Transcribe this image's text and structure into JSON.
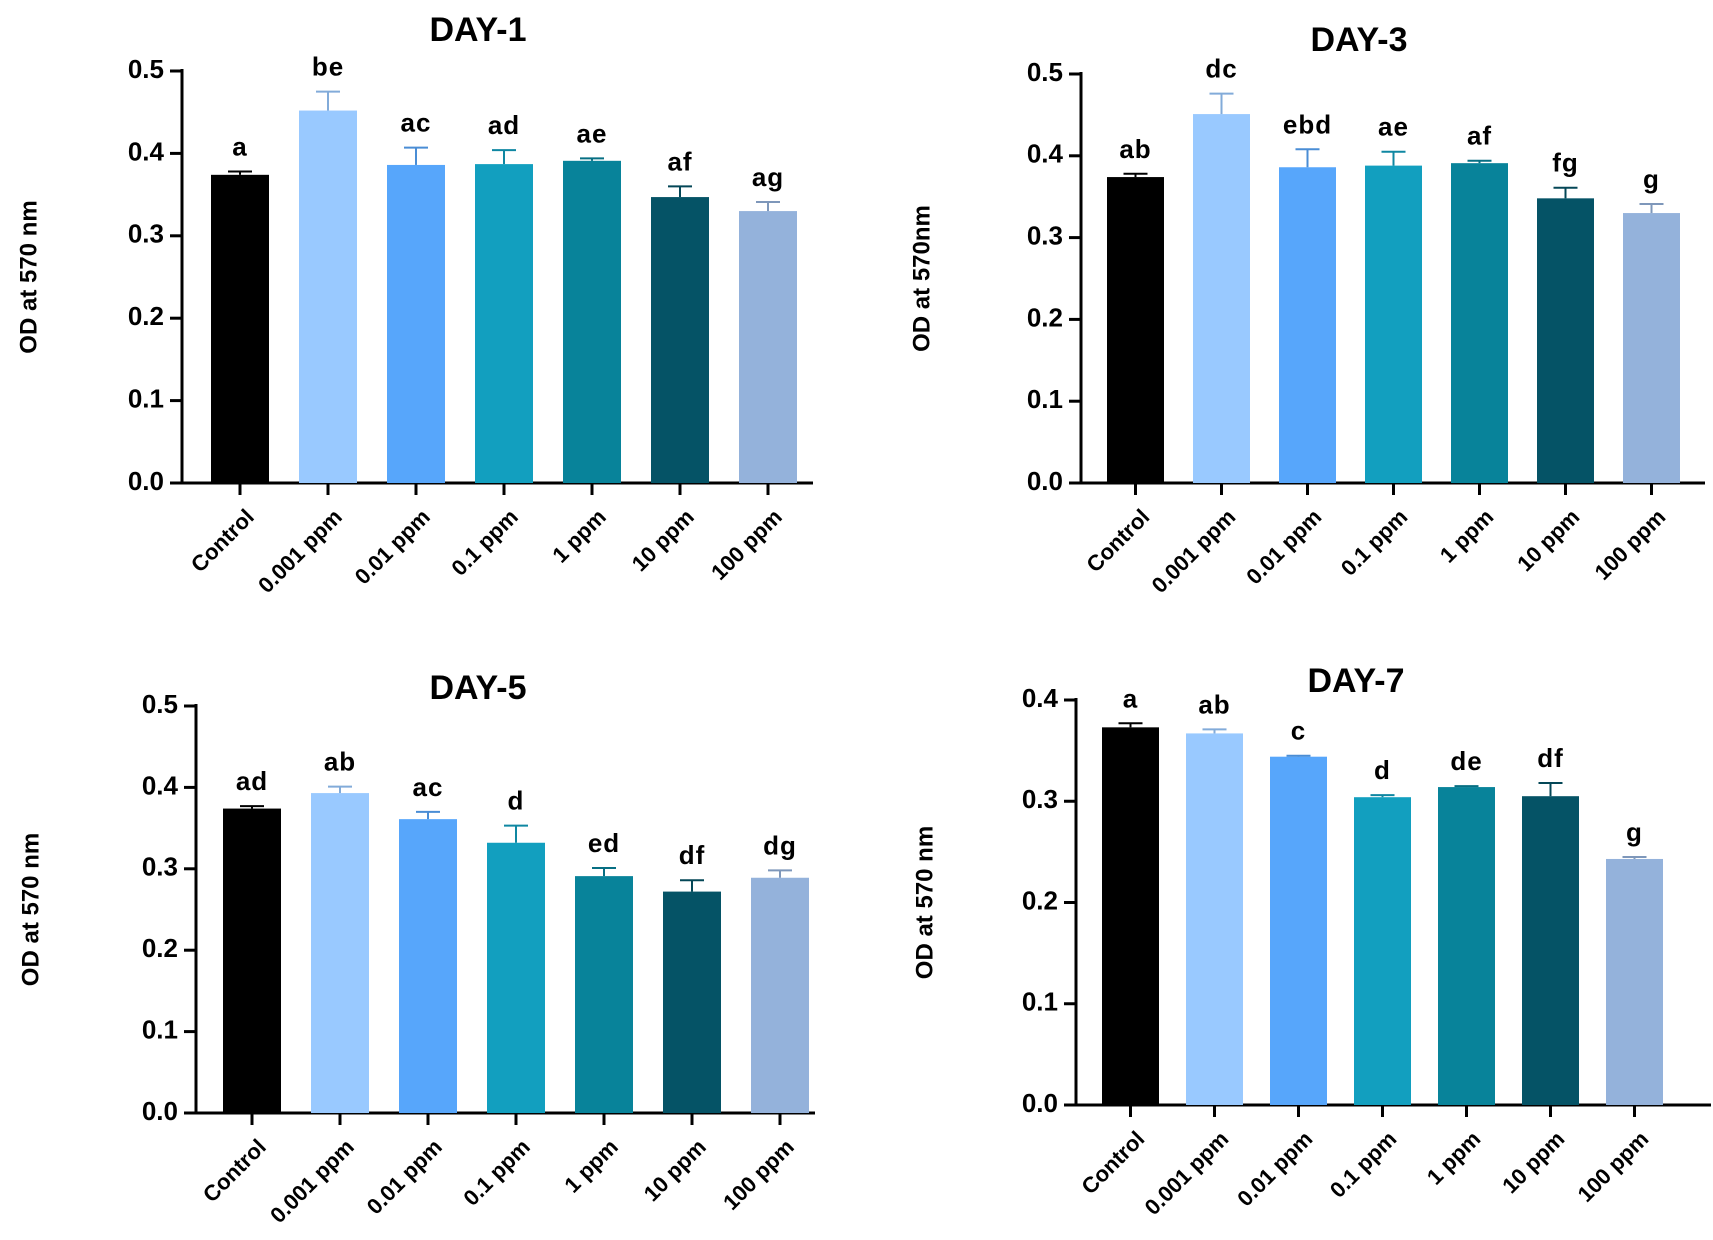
{
  "figure": {
    "colors": [
      "#000000",
      "#99c9ff",
      "#57a6fb",
      "#129fbf",
      "#08839a",
      "#055366",
      "#94b2db"
    ]
  },
  "chart_data": [
    {
      "type": "bar",
      "title": "DAY-1",
      "ylabel": "OD at 570 nm",
      "xlabel": "",
      "categories": [
        "Control",
        "0.001 ppm",
        "0.01 ppm",
        "0.1 ppm",
        "1 ppm",
        "10 ppm",
        "100 ppm"
      ],
      "values": [
        0.374,
        0.452,
        0.386,
        0.387,
        0.391,
        0.347,
        0.33
      ],
      "errors": [
        0.004,
        0.023,
        0.021,
        0.017,
        0.003,
        0.013,
        0.011
      ],
      "labels": [
        "a",
        "be",
        "ac",
        "ad",
        "ae",
        "af",
        "ag"
      ],
      "ylim": [
        0,
        0.5
      ],
      "yticks": [
        "0.0",
        "0.1",
        "0.2",
        "0.3",
        "0.4",
        "0.5"
      ],
      "grid": false,
      "legend": false
    },
    {
      "type": "bar",
      "title": "DAY-3",
      "ylabel": "OD at 570nm",
      "xlabel": "",
      "categories": [
        "Control",
        "0.001 ppm",
        "0.01 ppm",
        "0.1 ppm",
        "1 ppm",
        "10 ppm",
        "100 ppm"
      ],
      "values": [
        0.374,
        0.451,
        0.386,
        0.388,
        0.391,
        0.348,
        0.33
      ],
      "errors": [
        0.004,
        0.025,
        0.022,
        0.017,
        0.003,
        0.013,
        0.011
      ],
      "labels": [
        "ab",
        "dc",
        "ebd",
        "ae",
        "af",
        "fg",
        "g"
      ],
      "ylim": [
        0,
        0.5
      ],
      "yticks": [
        "0.0",
        "0.1",
        "0.2",
        "0.3",
        "0.4",
        "0.5"
      ],
      "grid": false,
      "legend": false
    },
    {
      "type": "bar",
      "title": "DAY-5",
      "ylabel": "OD at 570 nm",
      "xlabel": "",
      "categories": [
        "Control",
        "0.001 ppm",
        "0.01 ppm",
        "0.1 ppm",
        "1 ppm",
        "10 ppm",
        "100 ppm"
      ],
      "values": [
        0.374,
        0.393,
        0.361,
        0.332,
        0.291,
        0.272,
        0.289
      ],
      "errors": [
        0.003,
        0.008,
        0.009,
        0.021,
        0.01,
        0.014,
        0.009
      ],
      "labels": [
        "ad",
        "ab",
        "ac",
        "d",
        "ed",
        "df",
        "dg"
      ],
      "ylim": [
        0,
        0.5
      ],
      "yticks": [
        "0.0",
        "0.1",
        "0.2",
        "0.3",
        "0.4",
        "0.5"
      ],
      "grid": false,
      "legend": false
    },
    {
      "type": "bar",
      "title": "DAY-7",
      "ylabel": "OD at 570 nm",
      "xlabel": "",
      "categories": [
        "Control",
        "0.001 ppm",
        "0.01 ppm",
        "0.1 ppm",
        "1 ppm",
        "10 ppm",
        "100 ppm"
      ],
      "values": [
        0.373,
        0.367,
        0.344,
        0.304,
        0.314,
        0.305,
        0.243
      ],
      "errors": [
        0.004,
        0.004,
        0.001,
        0.002,
        0.001,
        0.013,
        0.002
      ],
      "labels": [
        "a",
        "ab",
        "c",
        "d",
        "de",
        "df",
        "g"
      ],
      "ylim": [
        0,
        0.4
      ],
      "yticks": [
        "0.0",
        "0.1",
        "0.2",
        "0.3",
        "0.4"
      ],
      "grid": false,
      "legend": false
    }
  ]
}
